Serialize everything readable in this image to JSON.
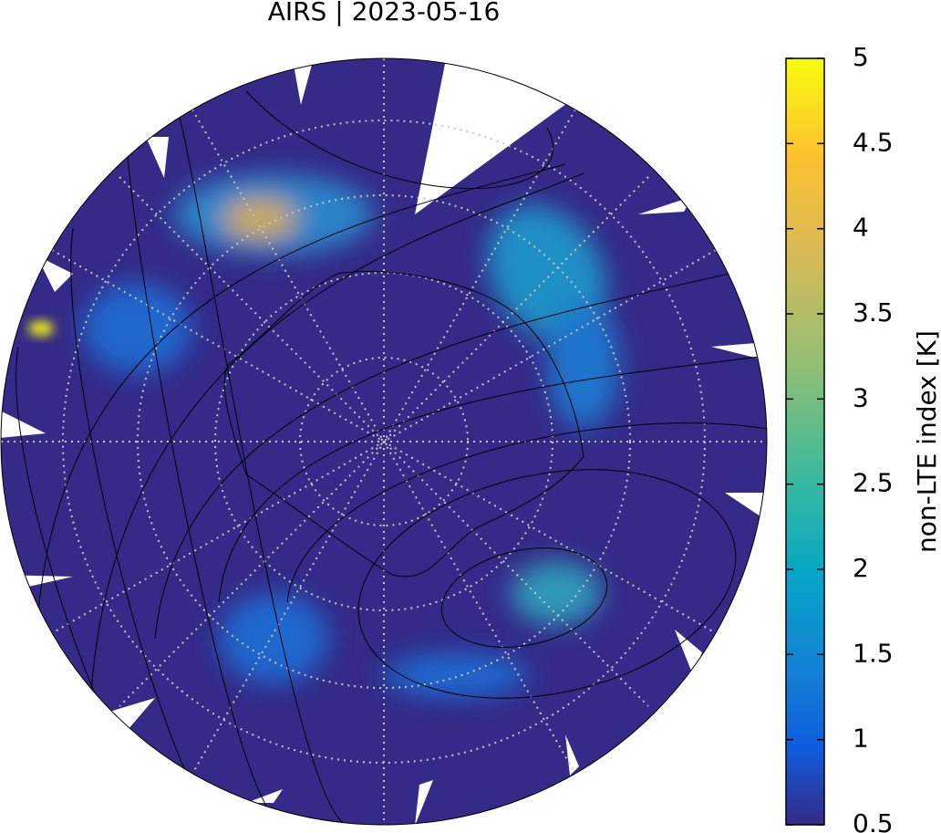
{
  "title": "AIRS | 2023-05-16",
  "colorbar": {
    "label": "non-LTE index [K]",
    "range": [
      0.5,
      5
    ],
    "ticks": [
      0.5,
      1,
      1.5,
      2,
      2.5,
      3,
      3.5,
      4,
      4.5,
      5
    ]
  }
}
